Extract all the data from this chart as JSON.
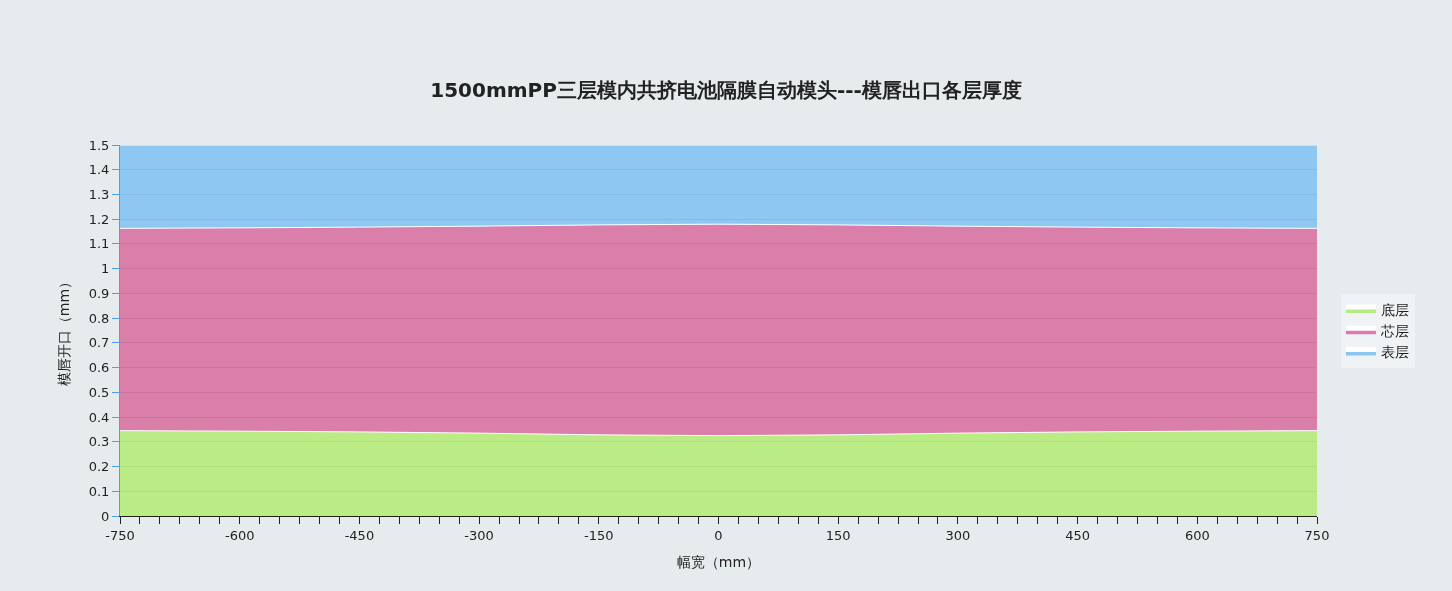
{
  "chart_data": {
    "type": "area",
    "stacked": true,
    "title": "1500mmPP三层模内共挤电池隔膜自动模头---模唇出口各层厚度",
    "xlabel": "幅宽（mm）",
    "ylabel": "模唇开口（mm）",
    "x": [
      -750,
      -600,
      -450,
      -300,
      -150,
      0,
      150,
      300,
      450,
      600,
      750
    ],
    "series": [
      {
        "name": "底层",
        "color": "#aee86f",
        "values": [
          0.345,
          0.343,
          0.34,
          0.335,
          0.328,
          0.325,
          0.328,
          0.335,
          0.34,
          0.343,
          0.345
        ]
      },
      {
        "name": "芯层",
        "color": "#d4699a",
        "values": [
          0.818,
          0.822,
          0.828,
          0.837,
          0.849,
          0.855,
          0.849,
          0.837,
          0.828,
          0.822,
          0.818
        ]
      },
      {
        "name": "表层",
        "color": "#7abdef",
        "values": [
          0.337,
          0.335,
          0.332,
          0.328,
          0.323,
          0.32,
          0.323,
          0.328,
          0.332,
          0.335,
          0.337
        ]
      }
    ],
    "xlim": [
      -750,
      750
    ],
    "xticks": [
      -750,
      {
        "value": -725,
        "label": null
      },
      {
        "value": -700,
        "label": null
      },
      {
        "value": -675,
        "label": null
      },
      {
        "value": -650,
        "label": null
      },
      {
        "value": -625,
        "label": null
      },
      -600,
      {
        "value": -575,
        "label": null
      },
      {
        "value": -550,
        "label": null
      },
      {
        "value": -525,
        "label": null
      },
      {
        "value": -500,
        "label": null
      },
      {
        "value": -475,
        "label": null
      },
      -450,
      {
        "value": -425,
        "label": null
      },
      {
        "value": -400,
        "label": null
      },
      {
        "value": -375,
        "label": null
      },
      {
        "value": -350,
        "label": null
      },
      {
        "value": -325,
        "label": null
      },
      -300,
      {
        "value": -275,
        "label": null
      },
      {
        "value": -250,
        "label": null
      },
      {
        "value": -225,
        "label": null
      },
      {
        "value": -200,
        "label": null
      },
      {
        "value": -175,
        "label": null
      },
      -150,
      {
        "value": -125,
        "label": null
      },
      {
        "value": -100,
        "label": null
      },
      {
        "value": -75,
        "label": null
      },
      {
        "value": -50,
        "label": null
      },
      {
        "value": -25,
        "label": null
      },
      0,
      {
        "value": 25,
        "label": null
      },
      {
        "value": 50,
        "label": null
      },
      {
        "value": 75,
        "label": null
      },
      {
        "value": 100,
        "label": null
      },
      {
        "value": 125,
        "label": null
      },
      150,
      {
        "value": 175,
        "label": null
      },
      {
        "value": 200,
        "label": null
      },
      {
        "value": 225,
        "label": null
      },
      {
        "value": 250,
        "label": null
      },
      {
        "value": 275,
        "label": null
      },
      300,
      {
        "value": 325,
        "label": null
      },
      {
        "value": 350,
        "label": null
      },
      {
        "value": 375,
        "label": null
      },
      {
        "value": 400,
        "label": null
      },
      {
        "value": 425,
        "label": null
      },
      450,
      {
        "value": 475,
        "label": null
      },
      {
        "value": 500,
        "label": null
      },
      {
        "value": 525,
        "label": null
      },
      {
        "value": 550,
        "label": null
      },
      {
        "value": 575,
        "label": null
      },
      600,
      {
        "value": 625,
        "label": null
      },
      {
        "value": 650,
        "label": null
      },
      {
        "value": 675,
        "label": null
      },
      {
        "value": 700,
        "label": null
      },
      {
        "value": 725,
        "label": null
      },
      750
    ],
    "ylim": [
      0,
      1.5
    ],
    "yticks": [
      0,
      0.1,
      0.2,
      0.3,
      0.4,
      0.5,
      0.6,
      0.7,
      0.8,
      0.9,
      1,
      1.1,
      1.2,
      1.3,
      1.4,
      1.5
    ],
    "grid": "y",
    "legend": "right"
  }
}
